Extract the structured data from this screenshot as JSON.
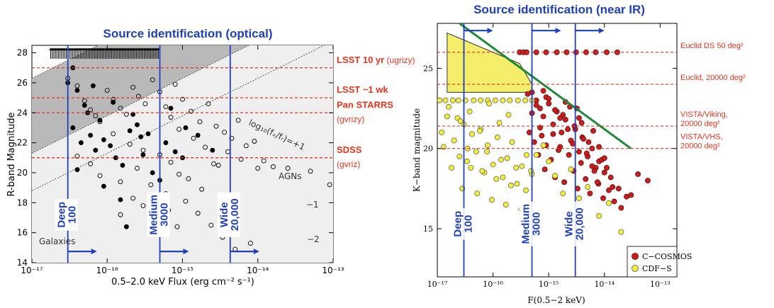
{
  "chart_data": [
    {
      "type": "scatter",
      "title": "Source identification (optical)",
      "xlabel": "0.5–2.0 keV Flux (erg cm⁻² s⁻¹)",
      "ylabel": "R-band Magnitude",
      "xscale": "log",
      "xlim": [
        1e-17,
        1e-13
      ],
      "ylim": [
        14,
        28.5
      ],
      "x_ticks": [
        "10⁻¹⁷",
        "10⁻¹⁶",
        "10⁻¹⁵",
        "10⁻¹⁴",
        "10⁻¹³"
      ],
      "y_ticks": [
        "14",
        "16",
        "18",
        "20",
        "22",
        "24",
        "26",
        "28"
      ],
      "magnitude_lines": [
        {
          "label": "LSST 10 yr",
          "sub": "(ugrizy)",
          "mag": 27
        },
        {
          "label": "LSST ~1 wk",
          "sub": "",
          "mag": 25
        },
        {
          "label": "Pan STARRS",
          "sub": "(gvrizy)",
          "mag": 24
        },
        {
          "label": "SDSS",
          "sub": "(gvriz)",
          "mag": 21
        }
      ],
      "surveys": [
        {
          "name": "Deep",
          "area": "100",
          "flux": 3e-17
        },
        {
          "name": "Medium",
          "area": "3000",
          "flux": 5e-16
        },
        {
          "name": "Wide",
          "area": "20,000",
          "flux": 4.3e-15
        }
      ],
      "annotations": {
        "ratio_label": "log₁₀(fₓ/fᵣ)=+1",
        "minus1": "−1",
        "minus2": "−2",
        "agn": "AGNs",
        "galaxies": "Galaxies"
      },
      "series": [
        {
          "name": "",
          "marker": "filled",
          "x": [
            3e-17,
            4e-17,
            5e-17,
            3.5e-17,
            6e-17,
            4.5e-17,
            7e-17,
            5.5e-17,
            8e-17,
            9e-17,
            1.1e-16,
            1.3e-16,
            1.6e-16,
            2e-16,
            2.5e-16,
            3e-16,
            4e-16,
            5e-16,
            6e-16,
            8e-16,
            1.1e-15,
            1.6e-15,
            2.5e-15,
            3.5e-17,
            6.5e-17,
            1.2e-16,
            2.2e-16,
            3.5e-16,
            7e-16,
            1e-15,
            1.5e-16,
            4e-17,
            9e-17,
            1.8e-16,
            2.8e-16
          ],
          "y": [
            26,
            25.5,
            24.5,
            23,
            22.5,
            22,
            21.5,
            24,
            23.5,
            22.2,
            21.8,
            21,
            20.5,
            22.8,
            23.2,
            21.2,
            20,
            19.5,
            22,
            21.4,
            23,
            22.5,
            21.5,
            27,
            25.8,
            24.7,
            23.9,
            22.6,
            24.3,
            21,
            18.2,
            20.2,
            19.1,
            16.4,
            22.4
          ]
        },
        {
          "name": "",
          "marker": "open",
          "x": [
            3e-17,
            4e-17,
            5e-17,
            6e-17,
            7e-17,
            8e-17,
            1e-16,
            1.2e-16,
            1.5e-16,
            1.8e-16,
            2.2e-16,
            2.6e-16,
            3.2e-16,
            4e-16,
            5e-16,
            6e-16,
            7e-16,
            8e-16,
            1e-15,
            1.3e-15,
            1.7e-15,
            2.2e-15,
            2.8e-15,
            3.6e-15,
            4.5e-15,
            5.5e-15,
            7e-15,
            9e-15,
            1.2e-14,
            1.6e-14,
            2.5e-14,
            5e-14,
            9e-14,
            1.2e-16,
            2e-16,
            3e-16,
            5e-16,
            7e-16,
            9e-16,
            1.4e-15,
            2e-15,
            3e-15,
            4e-17,
            6e-17,
            8e-17,
            1.5e-16,
            2.5e-16,
            3.8e-16,
            6e-16,
            9e-16,
            1.2e-15,
            1.8e-15,
            2.6e-15,
            4e-15,
            6e-15,
            1e-14,
            1.5e-16,
            2.2e-16,
            3e-16,
            4.5e-16,
            6.5e-16,
            8.5e-16,
            1.1e-15,
            1.6e-15,
            2.4e-15,
            3.4e-15,
            5e-15,
            8e-15
          ],
          "y": [
            26.3,
            25.8,
            24.8,
            24.2,
            23.8,
            23.4,
            25.5,
            24.9,
            24.3,
            23.9,
            25.7,
            25.1,
            24.6,
            26.2,
            25.4,
            24.4,
            23.7,
            25.9,
            24.9,
            24.1,
            23.4,
            24.6,
            23.1,
            22.7,
            22.3,
            23.5,
            21.8,
            22.1,
            20.8,
            20.4,
            20.3,
            20.1,
            19.2,
            22.6,
            21.9,
            21.5,
            21.2,
            20.7,
            22.9,
            22.3,
            21.7,
            20.5,
            21.1,
            20.6,
            19.8,
            19.4,
            20.3,
            19.2,
            18.6,
            19.9,
            19.6,
            18.9,
            20.6,
            21.4,
            20.9,
            20.3,
            17.2,
            18.3,
            17.8,
            16.8,
            17.5,
            16.4,
            18.1,
            17.3,
            16.5,
            15.7,
            14.9,
            15.3
          ]
        }
      ]
    },
    {
      "type": "scatter",
      "title": "Source identification (near IR)",
      "xlabel": "F(0.5−2 keV)",
      "ylabel": "K−band magnitude",
      "xscale": "log",
      "xlim": [
        1e-17,
        2e-13
      ],
      "ylim": [
        12,
        27.8
      ],
      "x_ticks": [
        "10⁻¹⁷",
        "10⁻¹⁶",
        "10⁻¹⁵",
        "10⁻¹⁴",
        "10⁻¹³"
      ],
      "y_ticks": [
        "15",
        "20",
        "25"
      ],
      "magnitude_lines": [
        {
          "label": "Euclid DS 50 deg²",
          "mag": 26
        },
        {
          "label": "Euclid, 20000 deg²",
          "mag": 24
        },
        {
          "label": "VISTA/Viking, 20000 deg²",
          "mag": 21.4
        },
        {
          "label": "VISTA/VHS, 20000 deg²",
          "mag": 20
        }
      ],
      "surveys": [
        {
          "name": "Deep",
          "area": "100",
          "flux": 3e-17
        },
        {
          "name": "Medium",
          "area": "3000",
          "flux": 5e-16
        },
        {
          "name": "Wide",
          "area": "20,000",
          "flux": 3e-15
        }
      ],
      "legend": [
        "C−COSMOS",
        "CDF−S"
      ],
      "legend_position": "bottom-right",
      "series": [
        {
          "name": "C−COSMOS",
          "color": "#c81e1e",
          "x": [
            5e-16,
            6e-16,
            7e-16,
            8e-16,
            9e-16,
            1e-15,
            1.2e-15,
            1.4e-15,
            1.7e-15,
            2e-15,
            2.5e-15,
            3e-15,
            3.5e-15,
            4e-15,
            5e-15,
            6e-15,
            7e-15,
            8e-15,
            1e-14,
            1.3e-14,
            1.8e-14,
            2.5e-14,
            4e-14,
            6e-14,
            4.5e-16,
            5.5e-16,
            6.5e-16,
            7.5e-16,
            8.5e-16,
            1.1e-15,
            1.3e-15,
            1.6e-15,
            1.9e-15,
            2.3e-15,
            2.8e-15,
            3.3e-15,
            3.8e-15,
            4.6e-15,
            5.5e-15,
            6.6e-15,
            7.8e-15,
            9.5e-15,
            1.2e-14,
            1.5e-14,
            2e-14,
            3e-14,
            5e-16,
            7e-16,
            9e-16,
            1.2e-15,
            1.5e-15,
            1.8e-15,
            2.2e-15,
            2.7e-15,
            3.2e-15,
            3.9e-15,
            4.8e-15,
            6e-15,
            7.5e-15,
            9e-15,
            1.1e-14,
            1.4e-14,
            4.2e-16,
            6e-16,
            8e-16,
            1e-15,
            1.3e-15,
            1.6e-15,
            2e-15,
            2.4e-15,
            2.9e-15,
            3.5e-15,
            4.2e-15,
            5.2e-15,
            6.3e-15,
            8e-15,
            1e-14,
            3e-16,
            3.5e-16,
            4e-16,
            6e-16,
            9e-16,
            1.4e-15,
            2.1e-15,
            3.1e-15,
            4.7e-15,
            7e-15,
            1.1e-14,
            1.7e-14
          ],
          "y": [
            23.5,
            23,
            22.5,
            22,
            23.2,
            22.8,
            21.5,
            22.3,
            21,
            21.8,
            20.5,
            21.2,
            19.8,
            20.7,
            19.5,
            20,
            18.8,
            19.2,
            18.5,
            18.2,
            17.5,
            17,
            18.4,
            18,
            21,
            20.4,
            19.6,
            20.8,
            18.7,
            19.3,
            18.2,
            20.1,
            17.9,
            19.6,
            18.6,
            17.5,
            19.1,
            18.1,
            17.2,
            18.6,
            17.8,
            16.9,
            17.4,
            16.7,
            16.3,
            17.1,
            22.2,
            21.3,
            20.2,
            20.9,
            19.9,
            22.1,
            21.2,
            20.3,
            22.5,
            21.6,
            19.7,
            18.9,
            17.9,
            19.3,
            18.8,
            17.6,
            23.4,
            22.7,
            23.6,
            23.1,
            22.4,
            21.9,
            22.9,
            22.6,
            21.4,
            21.9,
            20.6,
            20.4,
            21.1,
            20.1,
            19.4,
            26,
            26,
            26,
            26,
            26,
            26,
            26,
            26,
            26,
            26,
            26,
            26
          ]
        },
        {
          "name": "CDF−S",
          "color": "#f2ee3a",
          "x": [
            1.2e-17,
            1.5e-17,
            2e-17,
            2.5e-17,
            3e-17,
            3.5e-17,
            4e-17,
            5e-17,
            6e-17,
            7e-17,
            8e-17,
            1e-16,
            1.2e-16,
            1.5e-16,
            1.8e-16,
            2.2e-16,
            2.7e-16,
            3.3e-16,
            4e-16,
            5e-16,
            1.3e-17,
            1.8e-17,
            2.3e-17,
            2.8e-17,
            3.4e-17,
            4.2e-17,
            5.2e-17,
            6.4e-17,
            7.8e-17,
            9.5e-17,
            1.15e-16,
            1.4e-16,
            1.7e-16,
            2.1e-16,
            2.6e-16,
            3.2e-16,
            3.9e-16,
            4.8e-16,
            6e-16,
            8e-16,
            1e-15,
            1.3e-15,
            1.8e-15,
            2.5e-15,
            3.5e-15,
            5e-15,
            8e-15,
            1.2e-14,
            2e-14,
            1.1e-17,
            1.4e-17,
            1.9e-17,
            2.4e-17,
            3.2e-17,
            4.5e-17,
            6e-17,
            8e-17,
            1.1e-16,
            1.5e-16,
            2e-16,
            2.8e-16,
            3.8e-16,
            5e-16,
            1.6e-17,
            2.6e-17,
            3.8e-17,
            5.8e-17,
            8.5e-17,
            1.3e-16,
            1.9e-16
          ],
          "y": [
            21,
            22,
            20.5,
            19.5,
            21.5,
            20,
            18.8,
            19.8,
            21.2,
            18.5,
            20.2,
            19,
            20.7,
            18.2,
            19.4,
            20.4,
            17.8,
            18.9,
            19.6,
            18.4,
            20.1,
            18.8,
            21.9,
            17.5,
            19.2,
            20.9,
            17.2,
            18.6,
            19.8,
            16.8,
            18.1,
            19.3,
            16.5,
            17.7,
            18.8,
            16.2,
            17.4,
            18.6,
            19.6,
            20.2,
            19.2,
            18.3,
            17.2,
            18.7,
            16.9,
            17.6,
            15.8,
            16.6,
            14.8,
            23,
            23,
            23,
            23,
            23,
            23,
            23,
            23,
            23,
            23,
            23,
            23,
            23,
            23,
            22.6,
            21.7,
            22.3,
            21.1,
            22.8,
            21.6,
            22.1
          ]
        }
      ]
    }
  ]
}
